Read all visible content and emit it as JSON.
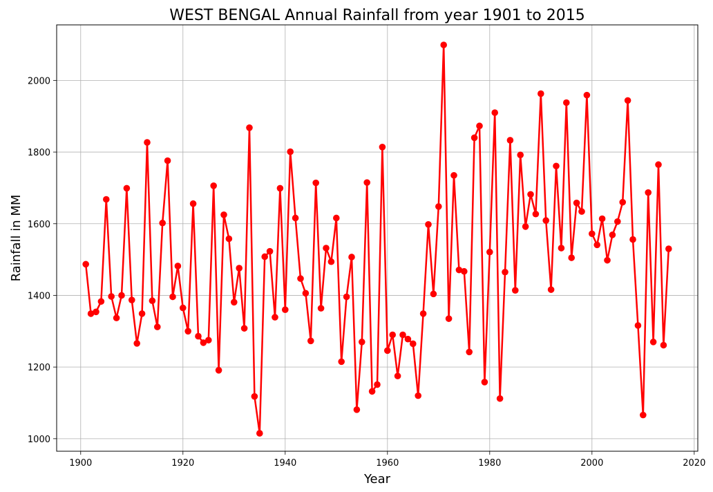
{
  "chart_data": {
    "type": "line",
    "title": "WEST BENGAL Annual Rainfall from year 1901 to 2015",
    "xlabel": "Year",
    "ylabel": "Rainfall in MM",
    "xlim": [
      1895.3,
      2020.7
    ],
    "ylim": [
      965,
      2155
    ],
    "xticks": [
      1900,
      1920,
      1940,
      1960,
      1980,
      2000,
      2020
    ],
    "yticks": [
      1000,
      1200,
      1400,
      1600,
      1800,
      2000
    ],
    "grid": true,
    "color": "#ff0000",
    "series": [
      {
        "name": "",
        "x": [
          1901,
          1902,
          1903,
          1904,
          1905,
          1906,
          1907,
          1908,
          1909,
          1910,
          1911,
          1912,
          1913,
          1914,
          1915,
          1916,
          1917,
          1918,
          1919,
          1920,
          1921,
          1922,
          1923,
          1924,
          1925,
          1926,
          1927,
          1928,
          1929,
          1930,
          1931,
          1932,
          1933,
          1934,
          1935,
          1936,
          1937,
          1938,
          1939,
          1940,
          1941,
          1942,
          1943,
          1944,
          1945,
          1946,
          1947,
          1948,
          1949,
          1950,
          1951,
          1952,
          1953,
          1954,
          1955,
          1956,
          1957,
          1958,
          1959,
          1960,
          1961,
          1962,
          1963,
          1964,
          1965,
          1966,
          1967,
          1968,
          1969,
          1970,
          1971,
          1972,
          1973,
          1974,
          1975,
          1976,
          1977,
          1978,
          1979,
          1980,
          1981,
          1982,
          1983,
          1984,
          1985,
          1986,
          1987,
          1988,
          1989,
          1990,
          1991,
          1992,
          1993,
          1994,
          1995,
          1996,
          1997,
          1998,
          1999,
          2000,
          2001,
          2002,
          2003,
          2004,
          2005,
          2006,
          2007,
          2008,
          2009,
          2010,
          2011,
          2012,
          2013,
          2014,
          2015
        ],
        "values": [
          1487,
          1349,
          1354,
          1383,
          1668,
          1397,
          1337,
          1400,
          1699,
          1387,
          1266,
          1349,
          1827,
          1385,
          1312,
          1602,
          1776,
          1396,
          1482,
          1365,
          1300,
          1656,
          1286,
          1268,
          1275,
          1706,
          1191,
          1625,
          1558,
          1381,
          1476,
          1308,
          1868,
          1118,
          1015,
          1508,
          1523,
          1339,
          1699,
          1360,
          1801,
          1616,
          1447,
          1406,
          1273,
          1714,
          1364,
          1532,
          1494,
          1616,
          1215,
          1396,
          1507,
          1081,
          1270,
          1715,
          1132,
          1151,
          1814,
          1246,
          1290,
          1175,
          1290,
          1278,
          1265,
          1120,
          1349,
          1598,
          1404,
          1648,
          2099,
          1335,
          1735,
          1471,
          1467,
          1242,
          1840,
          1873,
          1158,
          1521,
          1910,
          1112,
          1465,
          1833,
          1414,
          1792,
          1592,
          1682,
          1627,
          1963,
          1609,
          1416,
          1761,
          1532,
          1938,
          1505,
          1658,
          1634,
          1959,
          1572,
          1541,
          1614,
          1498,
          1569,
          1606,
          1660,
          1944,
          1556,
          1316,
          1066,
          1687,
          1270,
          1765,
          1261,
          1530
        ]
      }
    ]
  }
}
